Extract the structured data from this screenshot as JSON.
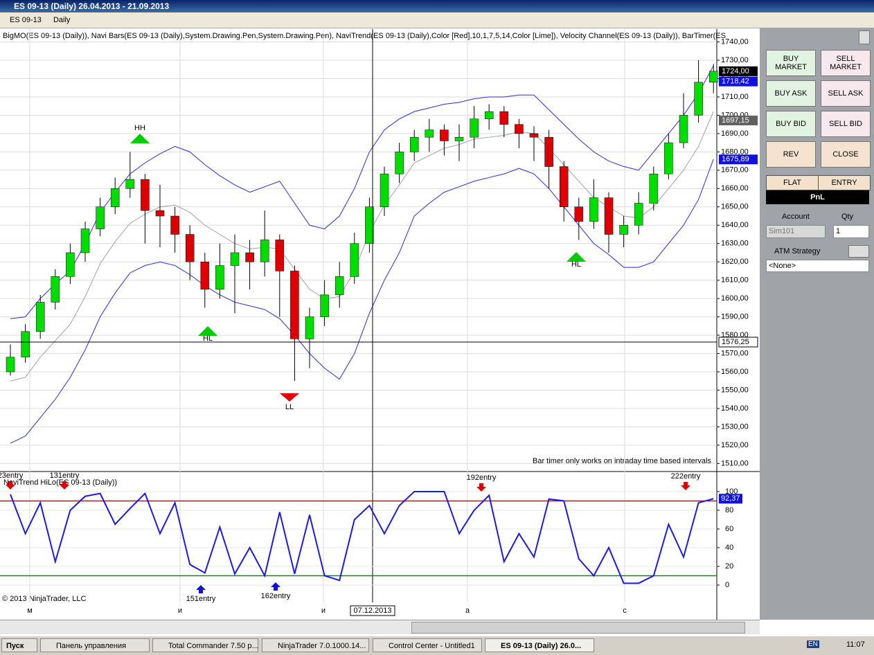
{
  "window": {
    "title": "ES 09-13 (Daily)  26.04.2013 - 21.09.2013"
  },
  "toolbar": {
    "instrument": "ES 09-13",
    "interval": "Daily"
  },
  "chart_data": [
    {
      "type": "candlestick",
      "subtitle": "BigMO(ES 09-13 (Daily)),  Navi Bars(ES 09-13 (Daily),System.Drawing.Pen,System.Drawing.Pen),  NaviTrend(ES 09-13 (Daily),Color [Red],10,1,7,5,14,Color [Lime]),  Velocity Channel(ES 09-13 (Daily)), BarTimer(ES",
      "note": "Bar timer only works on intraday time based intervals",
      "x_labels": [
        "м",
        "и",
        "и",
        "а",
        "с"
      ],
      "crosshair_date": "07.12.2013",
      "open": [
        1560,
        1568,
        1582,
        1598,
        1612,
        1625,
        1638,
        1650,
        1660,
        1665,
        1648,
        1645,
        1635,
        1620,
        1605,
        1618,
        1625,
        1620,
        1632,
        1615,
        1578,
        1590,
        1602,
        1612,
        1630,
        1650,
        1668,
        1680,
        1688,
        1692,
        1686,
        1688,
        1698,
        1702,
        1695,
        1690,
        1688,
        1672,
        1650,
        1642,
        1655,
        1635,
        1640,
        1652,
        1668,
        1685,
        1700,
        1718
      ],
      "high": [
        1575,
        1586,
        1602,
        1616,
        1630,
        1642,
        1655,
        1666,
        1680,
        1668,
        1662,
        1650,
        1640,
        1625,
        1630,
        1635,
        1632,
        1648,
        1635,
        1618,
        1595,
        1610,
        1620,
        1636,
        1655,
        1672,
        1685,
        1692,
        1698,
        1695,
        1695,
        1705,
        1706,
        1705,
        1698,
        1694,
        1692,
        1675,
        1655,
        1665,
        1658,
        1645,
        1658,
        1672,
        1690,
        1712,
        1730,
        1728
      ],
      "low": [
        1558,
        1565,
        1578,
        1594,
        1608,
        1620,
        1634,
        1646,
        1655,
        1630,
        1628,
        1625,
        1610,
        1595,
        1600,
        1592,
        1605,
        1612,
        1590,
        1555,
        1562,
        1585,
        1595,
        1608,
        1625,
        1645,
        1663,
        1675,
        1680,
        1678,
        1675,
        1682,
        1692,
        1688,
        1682,
        1675,
        1660,
        1642,
        1632,
        1638,
        1625,
        1628,
        1635,
        1648,
        1665,
        1682,
        1696,
        1712
      ],
      "close": [
        1568,
        1582,
        1598,
        1612,
        1625,
        1638,
        1650,
        1660,
        1665,
        1648,
        1645,
        1635,
        1620,
        1605,
        1618,
        1625,
        1620,
        1632,
        1615,
        1578,
        1590,
        1602,
        1612,
        1630,
        1650,
        1668,
        1680,
        1688,
        1692,
        1686,
        1688,
        1698,
        1702,
        1695,
        1690,
        1688,
        1672,
        1650,
        1642,
        1655,
        1635,
        1640,
        1652,
        1668,
        1685,
        1700,
        1718,
        1724
      ],
      "up_color": "#00dd00",
      "down_color": "#dd0000",
      "bands": [
        {
          "color": "#2a2ae0",
          "values": [
            1589,
            1590,
            1600,
            1608,
            1615,
            1630,
            1647,
            1658,
            1668,
            1674,
            1679,
            1683,
            1680,
            1673,
            1667,
            1662,
            1658,
            1661,
            1664,
            1652,
            1640,
            1638,
            1645,
            1660,
            1680,
            1692,
            1698,
            1702,
            1704,
            1706,
            1707,
            1709,
            1710,
            1710,
            1711,
            1711,
            1703,
            1695,
            1687,
            1680,
            1675,
            1672,
            1670,
            1680,
            1690,
            1700,
            1712,
            1727
          ]
        },
        {
          "color": "#2a2ae0",
          "values": [
            1521,
            1525,
            1535,
            1545,
            1557,
            1572,
            1590,
            1603,
            1614,
            1618,
            1620,
            1618,
            1613,
            1607,
            1602,
            1598,
            1596,
            1594,
            1589,
            1580,
            1570,
            1562,
            1556,
            1570,
            1592,
            1610,
            1625,
            1645,
            1652,
            1658,
            1661,
            1664,
            1666,
            1668,
            1671,
            1668,
            1660,
            1650,
            1640,
            1630,
            1624,
            1617,
            1617,
            1620,
            1630,
            1640,
            1654,
            1676
          ]
        },
        {
          "color": "#a0a0a0",
          "values": [
            1555,
            1557,
            1568,
            1577,
            1586,
            1601,
            1619,
            1631,
            1641,
            1646,
            1650,
            1651,
            1647,
            1640,
            1635,
            1630,
            1627,
            1628,
            1627,
            1616,
            1605,
            1600,
            1601,
            1615,
            1636,
            1651,
            1662,
            1674,
            1678,
            1682,
            1684,
            1687,
            1688,
            1689,
            1691,
            1690,
            1682,
            1673,
            1664,
            1655,
            1650,
            1645,
            1644,
            1650,
            1660,
            1670,
            1683,
            1702
          ]
        }
      ],
      "annotations": [
        "HH",
        "HL",
        "LL",
        "HL"
      ],
      "ylim": [
        1506,
        1747
      ],
      "yticks": [
        {
          "value": 1510,
          "label": "1510,00"
        },
        {
          "value": 1520,
          "label": "1520,00"
        },
        {
          "value": 1530,
          "label": "1530,00"
        },
        {
          "value": 1540,
          "label": "1540,00"
        },
        {
          "value": 1550,
          "label": "1550,00"
        },
        {
          "value": 1560,
          "label": "1560,00"
        },
        {
          "value": 1570,
          "label": "1570,00"
        },
        {
          "value": 1580,
          "label": "1580,00"
        },
        {
          "value": 1590,
          "label": "1590,00"
        },
        {
          "value": 1600,
          "label": "1600,00"
        },
        {
          "value": 1610,
          "label": "1610,00"
        },
        {
          "value": 1620,
          "label": "1620,00"
        },
        {
          "value": 1630,
          "label": "1630,00"
        },
        {
          "value": 1640,
          "label": "1640,00"
        },
        {
          "value": 1650,
          "label": "1650,00"
        },
        {
          "value": 1660,
          "label": "1660,00"
        },
        {
          "value": 1670,
          "label": "1670,00"
        },
        {
          "value": 1680,
          "label": "1680,00"
        },
        {
          "value": 1690,
          "label": "1690,00"
        },
        {
          "value": 1700,
          "label": "1700,00"
        },
        {
          "value": 1710,
          "label": "1710,00"
        },
        {
          "value": 1720,
          "label": "1720,00"
        },
        {
          "value": 1730,
          "label": "1730,00"
        },
        {
          "value": 1740,
          "label": "1740,00"
        }
      ],
      "price_markers": [
        {
          "value": 1724,
          "label": "1724,00",
          "color": "#000000"
        },
        {
          "value": 1718.42,
          "label": "1718,42",
          "color": "#1010e0"
        },
        {
          "value": 1697.15,
          "label": "1697,15",
          "color": "#606060"
        },
        {
          "value": 1675.89,
          "label": "1675,89",
          "color": "#1010e0"
        }
      ],
      "crosshair": {
        "value": 1576.25,
        "label": "1576,25"
      },
      "grid": true
    },
    {
      "type": "line",
      "title": "NaviTrend HiLo(ES 09-13 (Daily))",
      "copyright": "© 2013 NinjaTrader, LLC",
      "values": [
        97,
        55,
        88,
        25,
        80,
        95,
        98,
        65,
        82,
        98,
        55,
        88,
        22,
        13,
        62,
        12,
        40,
        10,
        78,
        12,
        75,
        10,
        5,
        70,
        85,
        55,
        85,
        100,
        100,
        100,
        55,
        80,
        96,
        25,
        55,
        30,
        92,
        90,
        28,
        10,
        40,
        2,
        2,
        10,
        65,
        30,
        88,
        92.37
      ],
      "color": "#1a1ae6",
      "hlines": [
        {
          "value": 90,
          "color": "#e00000"
        },
        {
          "value": 10,
          "color": "#009000"
        }
      ],
      "last": {
        "value": 92.37,
        "label": "92,37"
      },
      "annotations": [
        "23entry",
        "131entry",
        "151entry",
        "162entry",
        "192entry",
        "222entry"
      ],
      "ylim": [
        -18.5,
        120.7
      ],
      "yticks": [
        0,
        20,
        40,
        60,
        80,
        100
      ],
      "grid": true
    }
  ],
  "order_panel": {
    "buttons": [
      "BUY MARKET",
      "SELL MARKET",
      "BUY ASK",
      "SELL ASK",
      "BUY BID",
      "SELL BID",
      "REV",
      "CLOSE"
    ],
    "flat": "FLAT",
    "entry": "ENTRY",
    "pnl": "PnL",
    "account_label": "Account",
    "qty_label": "Qty",
    "account": "Sim101",
    "qty": "1",
    "atm_label": "ATM Strategy",
    "atm": "<None>"
  },
  "taskbar": {
    "start": "Пуск",
    "items": [
      "Панель управления",
      "Total Commander 7.50 p...",
      "NinjaTrader 7.0.1000.14...",
      "Control Center - Untitled1",
      "ES 09-13 (Daily)  26.0..."
    ],
    "lang": "EN",
    "time": "11:07"
  }
}
